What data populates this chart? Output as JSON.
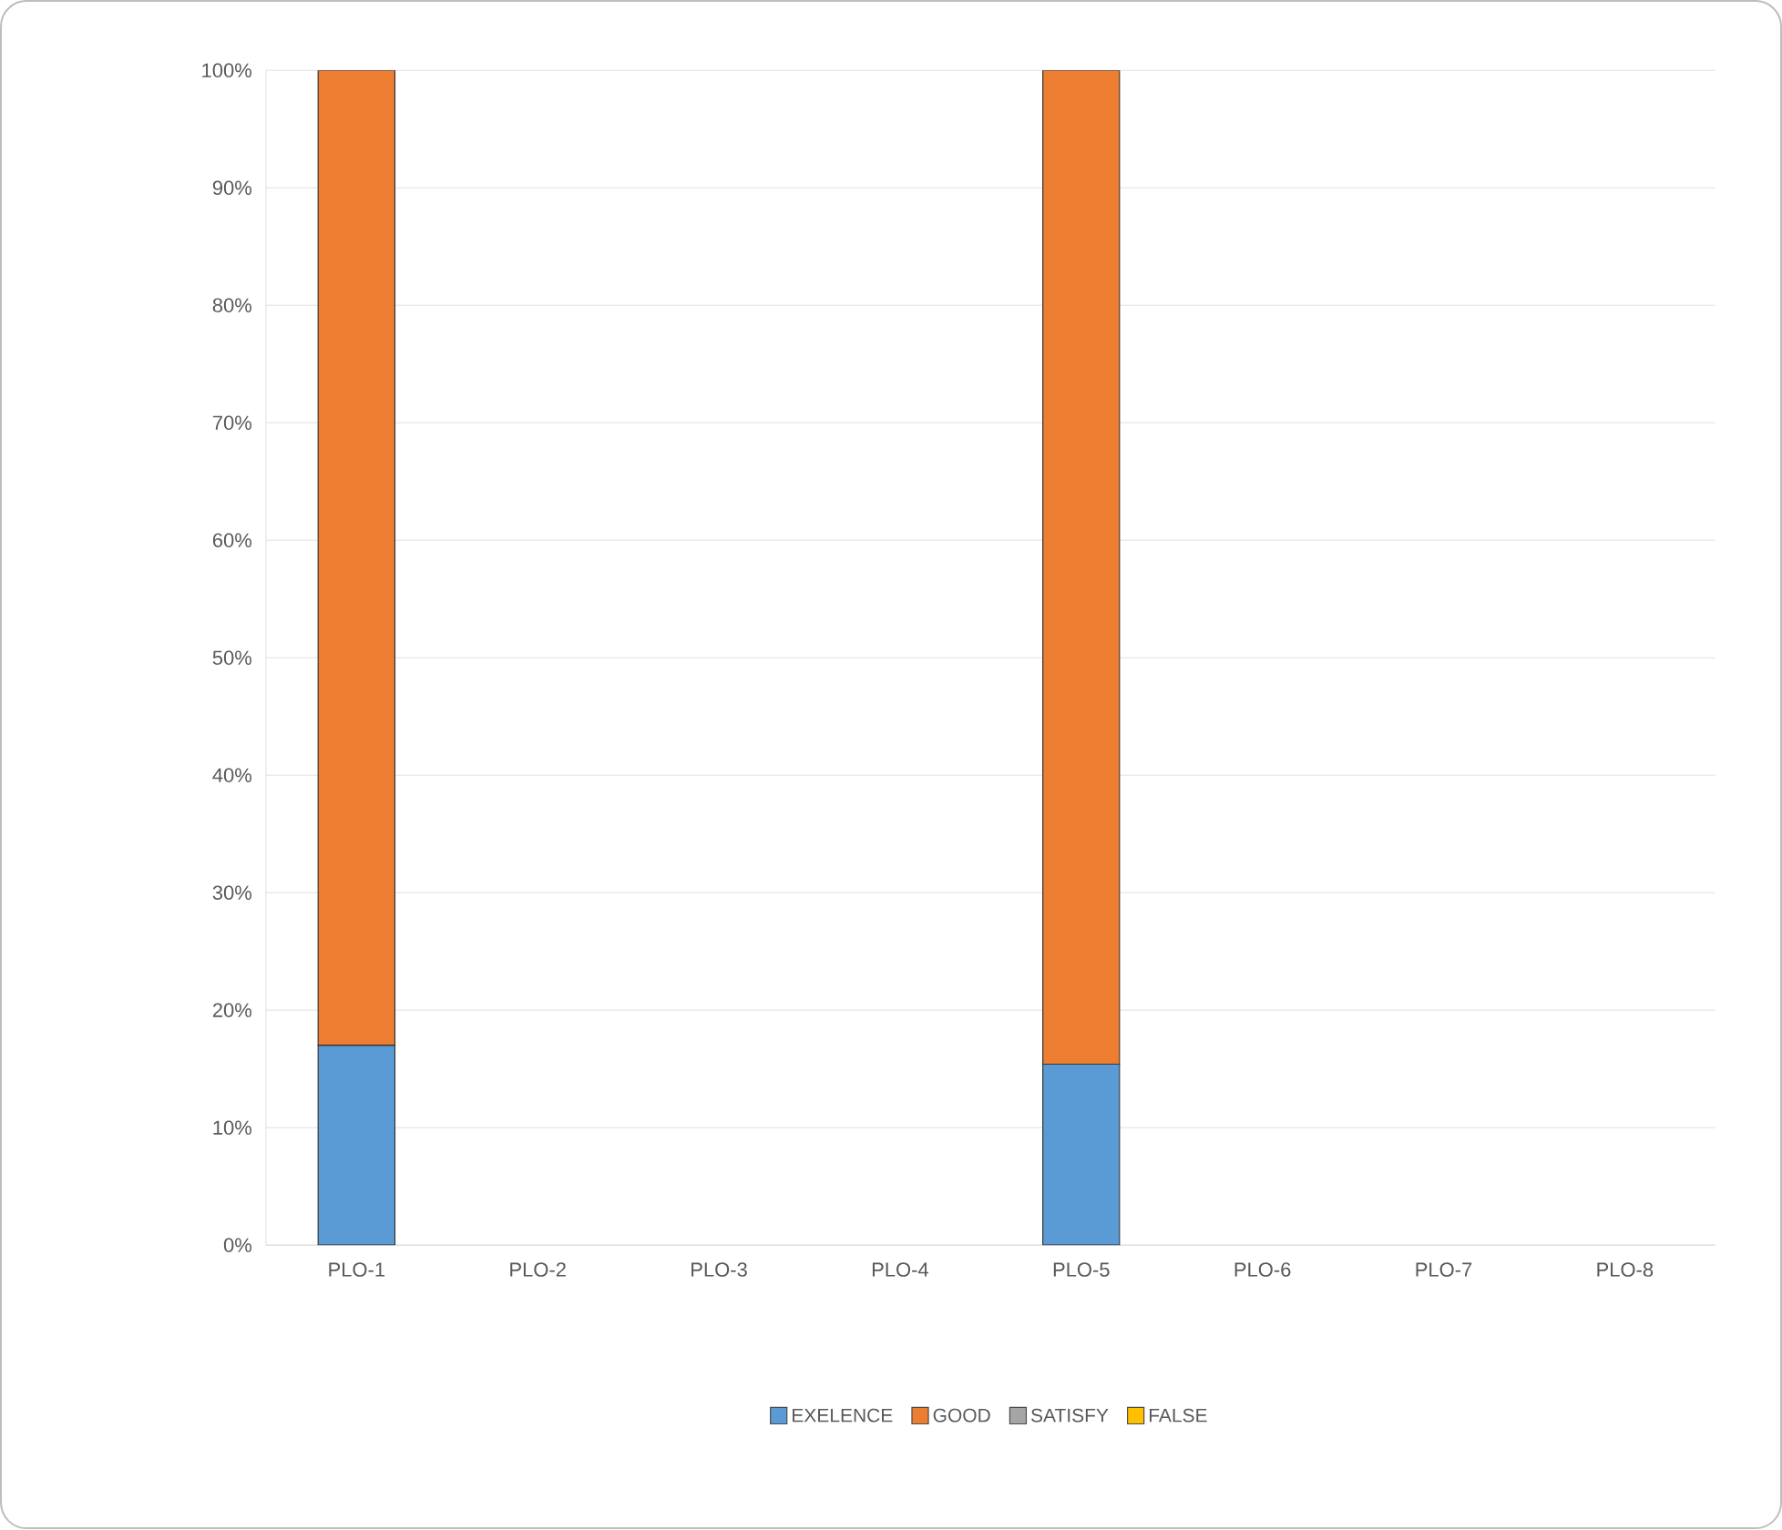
{
  "chart_data": {
    "type": "bar",
    "stacked": true,
    "categories": [
      "PLO-1",
      "PLO-2",
      "PLO-3",
      "PLO-4",
      "PLO-5",
      "PLO-6",
      "PLO-7",
      "PLO-8"
    ],
    "series": [
      {
        "name": "EXELENCE",
        "color": "#5b9bd5",
        "values": [
          17,
          null,
          null,
          null,
          15.4,
          null,
          null,
          null
        ]
      },
      {
        "name": "GOOD",
        "color": "#ed7d31",
        "values": [
          83,
          null,
          null,
          null,
          84.6,
          null,
          null,
          null
        ]
      },
      {
        "name": "SATISFY",
        "color": "#a5a5a5",
        "values": [
          null,
          null,
          null,
          null,
          null,
          null,
          null,
          null
        ]
      },
      {
        "name": "FALSE",
        "color": "#ffc000",
        "values": [
          null,
          null,
          null,
          null,
          null,
          null,
          null,
          null
        ]
      }
    ],
    "ylim": [
      0,
      100
    ],
    "yticks": [
      {
        "value": 0,
        "label": "0%"
      },
      {
        "value": 10,
        "label": "10%"
      },
      {
        "value": 20,
        "label": "20%"
      },
      {
        "value": 30,
        "label": "30%"
      },
      {
        "value": 40,
        "label": "40%"
      },
      {
        "value": 50,
        "label": "50%"
      },
      {
        "value": 60,
        "label": "60%"
      },
      {
        "value": 70,
        "label": "70%"
      },
      {
        "value": 80,
        "label": "80%"
      },
      {
        "value": 90,
        "label": "90%"
      },
      {
        "value": 100,
        "label": "100%"
      }
    ],
    "grid": "y",
    "legend": "bottom"
  }
}
